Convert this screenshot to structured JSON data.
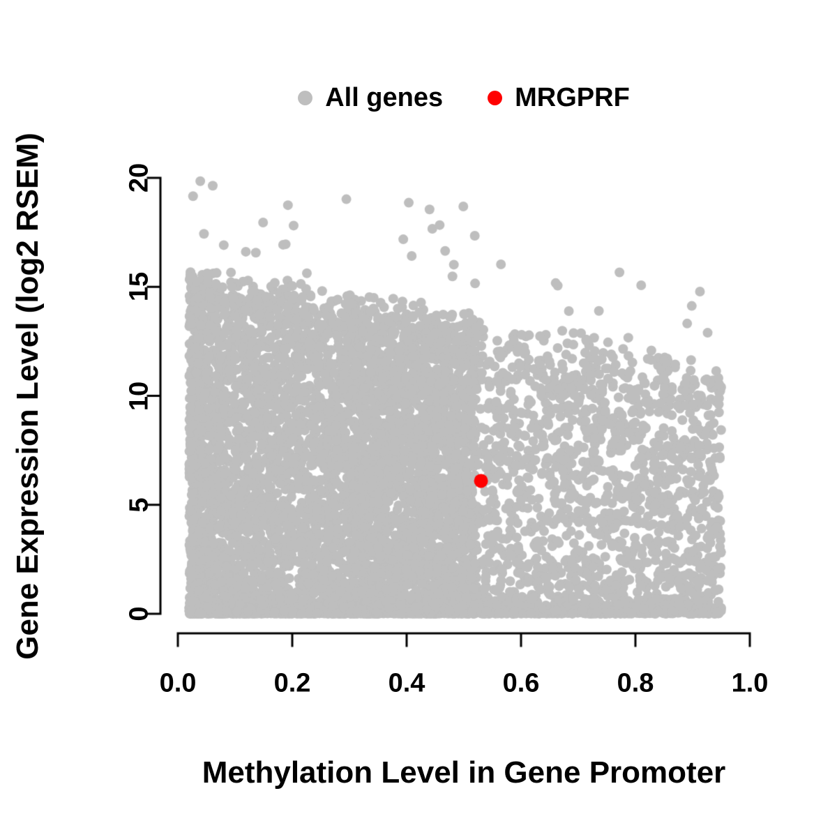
{
  "figure": {
    "background_color": "#ffffff",
    "axis_color": "#000000"
  },
  "chart_data": {
    "type": "scatter",
    "title": "",
    "xlabel": "Methylation Level in Gene Promoter",
    "ylabel": "Gene Expression Level (log2 RSEM)",
    "xlim": [
      0.0,
      1.0
    ],
    "ylim": [
      0,
      20
    ],
    "x_ticks": [
      "0.0",
      "0.2",
      "0.4",
      "0.6",
      "0.8",
      "1.0"
    ],
    "x_tick_values": [
      0.0,
      0.2,
      0.4,
      0.6,
      0.8,
      1.0
    ],
    "y_ticks": [
      "0",
      "5",
      "10",
      "15",
      "20"
    ],
    "y_tick_values": [
      0,
      5,
      10,
      15,
      20
    ],
    "grid": false,
    "legend_position": "top-center",
    "legend": [
      {
        "label": "All genes",
        "color": "#bebebe"
      },
      {
        "label": "MRGPRF",
        "color": "#ff0000"
      }
    ],
    "series": [
      {
        "name": "All genes",
        "color": "#bebebe",
        "style": "dense-scatter",
        "n_points_approx": 9000,
        "description": "Dense gray cloud of all genes. Very dense block for methylation 0.02-0.55 spanning expression 0-15; upper envelope of expression declines from ~15.6 at methylation 0 to ~11.5 at methylation 0.95; sparser spread for methylation 0.55-0.95; heavy band of points hugging expression 0 across the full methylation range; a few dozen outliers above the envelope up to ~19.8 (max near methylation 0.31).",
        "generator": {
          "seed": 20240613,
          "n_points": 9000,
          "x_min": 0.02,
          "x_max": 0.95,
          "low_cluster_fraction": 0.66,
          "low_cluster_width": 0.5,
          "low_cluster_power": 1.25,
          "spread_start": 0.3,
          "envelope_intercept": 15.6,
          "envelope_slope": -4.5,
          "envelope_jitter": 1.5,
          "bottom_band_fraction": 0.27,
          "bottom_band_scale": 0.18,
          "body_power": 1.15,
          "outlier_fraction": 0.004,
          "outlier_extra_max": 4.5,
          "y_cap": 19.85,
          "point_radius_px": 7
        }
      },
      {
        "name": "MRGPRF",
        "color": "#ff0000",
        "style": "highlight-point",
        "points": [
          [
            0.53,
            6.1
          ]
        ],
        "point_radius_px": 10
      }
    ]
  }
}
